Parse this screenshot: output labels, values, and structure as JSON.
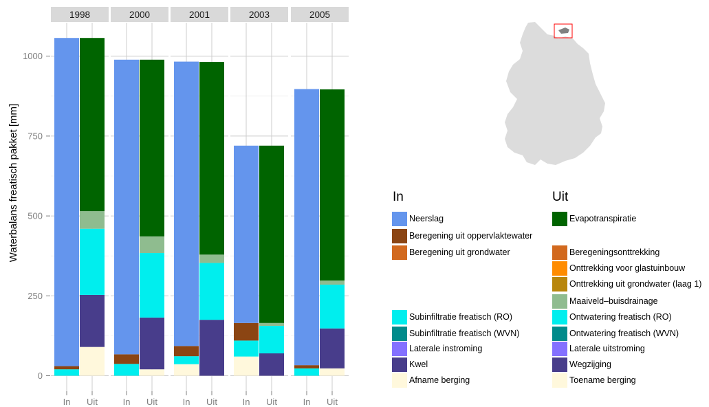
{
  "chart_data": {
    "type": "bar",
    "stacked": true,
    "ylabel": "Waterbalans freatisch pakket [mm]",
    "xlabel": "",
    "ylim": [
      0,
      1080
    ],
    "y_ticks": [
      0,
      250,
      500,
      750,
      1000
    ],
    "y_tick_labels": [
      "0",
      "250",
      "500",
      "750",
      "1000"
    ],
    "grid": true,
    "facets": [
      "1998",
      "2000",
      "2001",
      "2003",
      "2005"
    ],
    "categories": [
      "In",
      "Uit"
    ],
    "colors": {
      "Neerslag": "#6495ED",
      "Beregening uit oppervlaktewater": "#8B4513",
      "Beregening uit grondwater": "#D2691E",
      "Subinfiltratie freatisch (RO)": "#00EEEE",
      "Subinfiltratie freatisch (WVN)": "#008B8B",
      "Laterale instroming": "#8470FF",
      "Kwel": "#483D8B",
      "Afname berging": "#FFF8DC",
      "Evapotranspiratie": "#006400",
      "Beregeningsonttrekking": "#D2691E",
      "Onttrekking voor glastuinbouw": "#FF8C00",
      "Onttrekking uit grondwater (laag 1)": "#B8860B",
      "Maaiveld–buisdrainage": "#8FBC8F",
      "Ontwatering freatisch (RO)": "#00EEEE",
      "Ontwatering freatisch (WVN)": "#008B8B",
      "Laterale uitstroming": "#8470FF",
      "Wegzijging": "#483D8B",
      "Toename berging": "#FFF8DC"
    },
    "stacks": {
      "1998": {
        "In": [
          {
            "name": "Subinfiltratie freatisch (RO)",
            "value": 20
          },
          {
            "name": "Beregening uit oppervlaktewater",
            "value": 10
          },
          {
            "name": "Neerslag",
            "value": 1027
          }
        ],
        "Uit": [
          {
            "name": "Toename berging",
            "value": 90
          },
          {
            "name": "Wegzijging",
            "value": 163
          },
          {
            "name": "Ontwatering freatisch (RO)",
            "value": 207
          },
          {
            "name": "Maaiveld–buisdrainage",
            "value": 55
          },
          {
            "name": "Evapotranspiratie",
            "value": 542
          }
        ]
      },
      "2000": {
        "In": [
          {
            "name": "Subinfiltratie freatisch (RO)",
            "value": 37
          },
          {
            "name": "Beregening uit oppervlaktewater",
            "value": 30
          },
          {
            "name": "Neerslag",
            "value": 922
          }
        ],
        "Uit": [
          {
            "name": "Toename berging",
            "value": 20
          },
          {
            "name": "Wegzijging",
            "value": 162
          },
          {
            "name": "Ontwatering freatisch (RO)",
            "value": 202
          },
          {
            "name": "Maaiveld–buisdrainage",
            "value": 52
          },
          {
            "name": "Evapotranspiratie",
            "value": 553
          }
        ]
      },
      "2001": {
        "In": [
          {
            "name": "Afname berging",
            "value": 36
          },
          {
            "name": "Subinfiltratie freatisch (RO)",
            "value": 25
          },
          {
            "name": "Beregening uit oppervlaktewater",
            "value": 32
          },
          {
            "name": "Neerslag",
            "value": 890
          }
        ],
        "Uit": [
          {
            "name": "Wegzijging",
            "value": 175
          },
          {
            "name": "Ontwatering freatisch (RO)",
            "value": 178
          },
          {
            "name": "Maaiveld–buisdrainage",
            "value": 26
          },
          {
            "name": "Evapotranspiratie",
            "value": 603
          }
        ]
      },
      "2003": {
        "In": [
          {
            "name": "Afname berging",
            "value": 60
          },
          {
            "name": "Subinfiltratie freatisch (RO)",
            "value": 50
          },
          {
            "name": "Beregening uit oppervlaktewater",
            "value": 55
          },
          {
            "name": "Neerslag",
            "value": 555
          }
        ],
        "Uit": [
          {
            "name": "Wegzijging",
            "value": 70
          },
          {
            "name": "Ontwatering freatisch (RO)",
            "value": 86
          },
          {
            "name": "Maaiveld–buisdrainage",
            "value": 9
          },
          {
            "name": "Evapotranspiratie",
            "value": 555
          }
        ]
      },
      "2005": {
        "In": [
          {
            "name": "Subinfiltratie freatisch (RO)",
            "value": 23
          },
          {
            "name": "Beregening uit oppervlaktewater",
            "value": 10
          },
          {
            "name": "Neerslag",
            "value": 864
          }
        ],
        "Uit": [
          {
            "name": "Toename berging",
            "value": 23
          },
          {
            "name": "Wegzijging",
            "value": 125
          },
          {
            "name": "Ontwatering freatisch (RO)",
            "value": 137
          },
          {
            "name": "Maaiveld–buisdrainage",
            "value": 13
          },
          {
            "name": "Evapotranspiratie",
            "value": 598
          }
        ]
      }
    }
  },
  "legend": {
    "in_title": "In",
    "uit_title": "Uit",
    "in_items": [
      {
        "label": "Neerslag",
        "color": "#6495ED"
      },
      {
        "label": "Beregening uit oppervlaktewater",
        "color": "#8B4513"
      },
      {
        "label": "Beregening uit grondwater",
        "color": "#D2691E"
      },
      {
        "label": "Subinfiltratie freatisch (RO)",
        "color": "#00EEEE"
      },
      {
        "label": "Subinfiltratie freatisch (WVN)",
        "color": "#008B8B"
      },
      {
        "label": "Laterale instroming",
        "color": "#8470FF"
      },
      {
        "label": "Kwel",
        "color": "#483D8B"
      },
      {
        "label": "Afname berging",
        "color": "#FFF8DC"
      }
    ],
    "uit_items": [
      {
        "label": "Evapotranspiratie",
        "color": "#006400"
      },
      {
        "label": "Beregeningsonttrekking",
        "color": "#D2691E"
      },
      {
        "label": "Onttrekking voor glastuinbouw",
        "color": "#FF8C00"
      },
      {
        "label": "Onttrekking uit grondwater (laag 1)",
        "color": "#B8860B"
      },
      {
        "label": "Maaiveld–buisdrainage",
        "color": "#8FBC8F"
      },
      {
        "label": "Ontwatering freatisch (RO)",
        "color": "#00EEEE"
      },
      {
        "label": "Ontwatering freatisch (WVN)",
        "color": "#008B8B"
      },
      {
        "label": "Laterale uitstroming",
        "color": "#8470FF"
      },
      {
        "label": "Wegzijging",
        "color": "#483D8B"
      },
      {
        "label": "Toename berging",
        "color": "#FFF8DC"
      }
    ]
  },
  "map": {
    "region_color": "#dcdcdc",
    "highlight_color": "#ff0000",
    "area_color": "#808080"
  }
}
